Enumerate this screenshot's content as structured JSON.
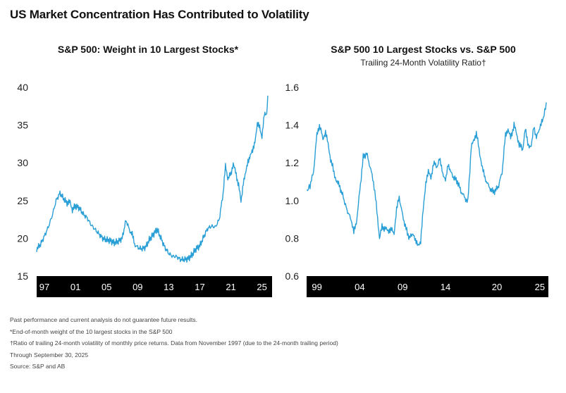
{
  "header": {
    "title": "US Market Concentration Has Contributed to Volatility"
  },
  "footnotes": {
    "disclaimer": "Past performance and current analysis do not guarantee future results.",
    "note_star": "*End-of-month weight of the 10 largest stocks in the S&P 500",
    "note_dagger": "†Ratio of trailing 24-month volatility of monthly price returns. Data from November 1997 (due to the 24-month trailing period)",
    "through": "Through September 30, 2025",
    "source": "Source: S&P and AB"
  },
  "colors": {
    "line": "#2a9fd6",
    "axis_band": "#000000"
  },
  "chart_data": [
    {
      "type": "line",
      "title": "S&P 500: Weight in 10 Largest Stocks*",
      "subtitle": "",
      "xlabel": "",
      "ylabel": "",
      "xlim": [
        1996.0,
        2026.3
      ],
      "ylim": [
        15,
        40
      ],
      "yticks": [
        "15",
        "20",
        "25",
        "30",
        "35",
        "40"
      ],
      "xticks": [
        {
          "label": "97",
          "year": 1997
        },
        {
          "label": "01",
          "year": 2001
        },
        {
          "label": "05",
          "year": 2005
        },
        {
          "label": "09",
          "year": 2009
        },
        {
          "label": "13",
          "year": 2013
        },
        {
          "label": "17",
          "year": 2017
        },
        {
          "label": "21",
          "year": 2021
        },
        {
          "label": "25",
          "year": 2025
        }
      ],
      "grid": false,
      "series": [
        {
          "x": [
            1996.0,
            1996.5,
            1997.0,
            1997.5,
            1998.0,
            1998.5,
            1999.0,
            1999.5,
            2000.0,
            2000.3,
            2000.6,
            2001.0,
            2001.5,
            2002.0,
            2002.5,
            2003.0,
            2003.5,
            2004.0,
            2004.5,
            2005.0,
            2005.5,
            2006.0,
            2006.5,
            2007.0,
            2007.5,
            2008.0,
            2008.3,
            2008.6,
            2009.0,
            2009.5,
            2010.0,
            2010.5,
            2011.0,
            2011.5,
            2012.0,
            2012.5,
            2013.0,
            2013.5,
            2014.0,
            2014.5,
            2015.0,
            2015.5,
            2016.0,
            2016.5,
            2017.0,
            2017.5,
            2018.0,
            2018.5,
            2019.0,
            2019.5,
            2020.0,
            2020.3,
            2020.6,
            2021.0,
            2021.3,
            2021.6,
            2022.0,
            2022.3,
            2022.6,
            2022.9,
            2023.2,
            2023.5,
            2023.8,
            2024.1,
            2024.4,
            2024.7,
            2025.0,
            2025.3,
            2025.6,
            2025.75
          ],
          "y": [
            18.6,
            19.2,
            20.3,
            21.5,
            23.0,
            25.0,
            26.0,
            25.2,
            24.6,
            24.8,
            23.8,
            24.3,
            24.0,
            23.2,
            22.7,
            21.8,
            21.2,
            20.6,
            20.0,
            19.8,
            19.7,
            19.4,
            19.6,
            20.0,
            22.4,
            21.0,
            20.5,
            19.2,
            18.8,
            18.6,
            18.8,
            19.8,
            20.5,
            21.2,
            20.0,
            18.8,
            18.0,
            17.6,
            17.6,
            17.2,
            17.2,
            17.3,
            17.8,
            18.6,
            19.0,
            20.2,
            21.3,
            21.6,
            21.5,
            22.5,
            26.0,
            29.5,
            28.0,
            28.5,
            30.0,
            28.7,
            27.0,
            24.8,
            27.5,
            28.5,
            30.3,
            31.0,
            31.5,
            33.0,
            35.0,
            34.8,
            33.5,
            36.3,
            36.5,
            38.9
          ]
        }
      ]
    },
    {
      "type": "line",
      "title": "S&P 500 10 Largest Stocks vs. S&P 500",
      "subtitle": "Trailing 24-Month Volatility Ratio†",
      "xlabel": "",
      "ylabel": "",
      "xlim": [
        1997.8,
        2026.0
      ],
      "ylim": [
        0.6,
        1.6
      ],
      "yticks": [
        "0.6",
        "0.8",
        "1.0",
        "1.2",
        "1.4",
        "1.6"
      ],
      "xticks": [
        {
          "label": "99",
          "year": 1999
        },
        {
          "label": "04",
          "year": 2004
        },
        {
          "label": "09",
          "year": 2009
        },
        {
          "label": "14",
          "year": 2014
        },
        {
          "label": "20",
          "year": 2020
        },
        {
          "label": "25",
          "year": 2025
        }
      ],
      "grid": false,
      "series": [
        {
          "x": [
            1997.83,
            1998.2,
            1998.6,
            1999.0,
            1999.3,
            1999.7,
            2000.0,
            2000.3,
            2000.6,
            2001.0,
            2001.3,
            2001.6,
            2002.0,
            2002.5,
            2003.0,
            2003.3,
            2003.6,
            2004.0,
            2004.4,
            2004.8,
            2005.2,
            2005.6,
            2006.0,
            2006.3,
            2006.6,
            2007.0,
            2007.3,
            2007.6,
            2008.0,
            2008.3,
            2008.6,
            2009.0,
            2009.4,
            2009.8,
            2010.2,
            2010.5,
            2010.8,
            2011.1,
            2011.4,
            2011.7,
            2012.0,
            2012.3,
            2012.6,
            2013.0,
            2013.3,
            2013.6,
            2014.0,
            2014.3,
            2014.6,
            2015.0,
            2015.4,
            2015.8,
            2016.2,
            2016.6,
            2017.0,
            2017.3,
            2017.6,
            2018.0,
            2018.3,
            2018.6,
            2019.0,
            2019.4,
            2019.8,
            2020.2,
            2020.6,
            2021.0,
            2021.3,
            2021.6,
            2022.0,
            2022.3,
            2022.6,
            2023.0,
            2023.3,
            2023.6,
            2024.0,
            2024.3,
            2024.6,
            2025.0,
            2025.3,
            2025.5,
            2025.75
          ],
          "y": [
            1.05,
            1.08,
            1.15,
            1.35,
            1.4,
            1.33,
            1.36,
            1.3,
            1.22,
            1.15,
            1.1,
            1.08,
            1.03,
            0.95,
            0.9,
            0.83,
            0.88,
            1.05,
            1.23,
            1.25,
            1.18,
            1.1,
            0.95,
            0.8,
            0.86,
            0.85,
            0.84,
            0.85,
            0.83,
            0.95,
            1.02,
            0.92,
            0.85,
            0.8,
            0.83,
            0.78,
            0.77,
            0.78,
            0.95,
            1.1,
            1.15,
            1.12,
            1.2,
            1.18,
            1.22,
            1.16,
            1.1,
            1.2,
            1.15,
            1.12,
            1.1,
            1.05,
            1.02,
            0.99,
            1.28,
            1.32,
            1.36,
            1.25,
            1.17,
            1.12,
            1.08,
            1.05,
            1.05,
            1.08,
            1.15,
            1.35,
            1.38,
            1.33,
            1.4,
            1.35,
            1.3,
            1.27,
            1.38,
            1.3,
            1.28,
            1.4,
            1.33,
            1.39,
            1.42,
            1.45,
            1.52
          ]
        }
      ]
    }
  ]
}
